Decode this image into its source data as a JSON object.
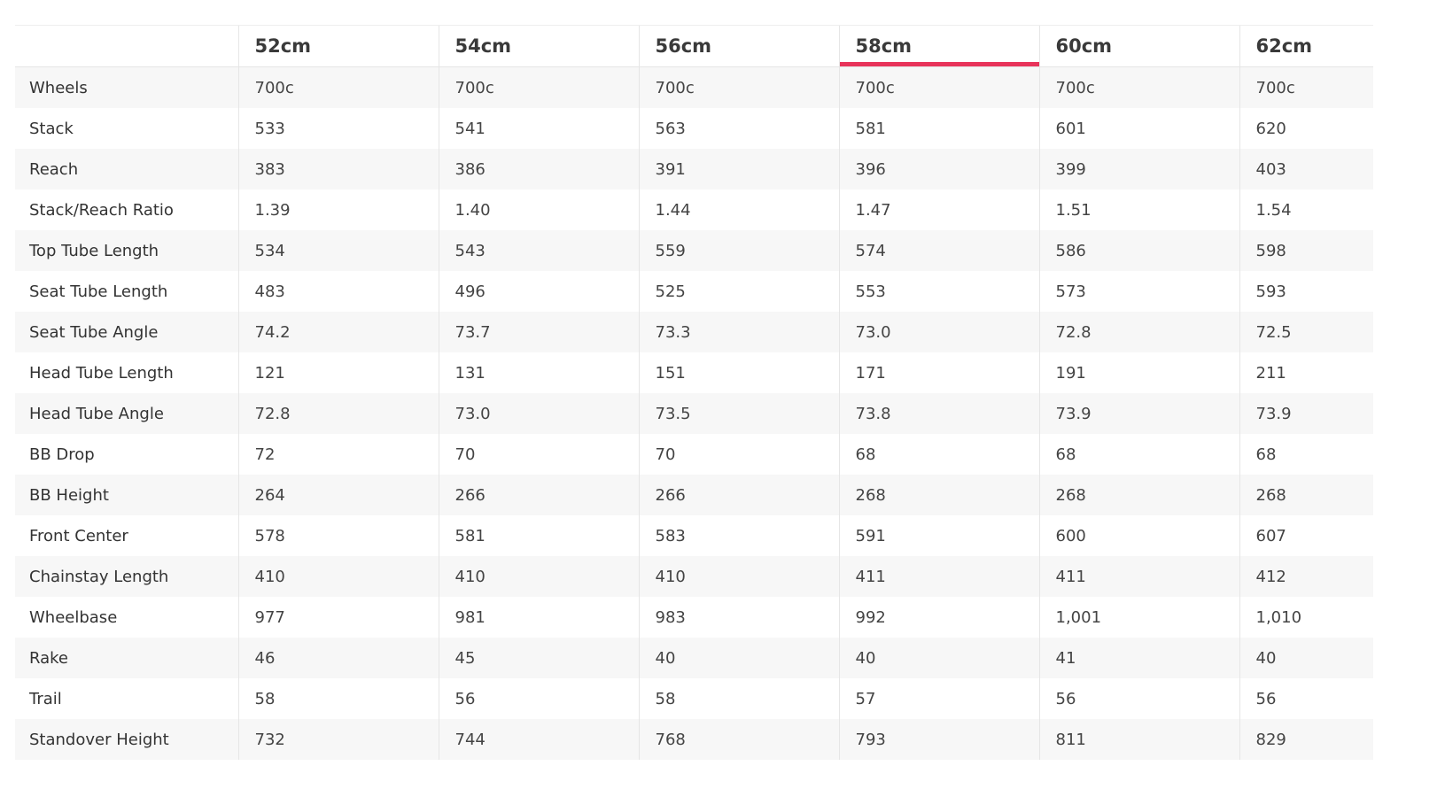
{
  "table": {
    "columns": [
      "52cm",
      "54cm",
      "56cm",
      "58cm",
      "60cm",
      "62cm"
    ],
    "rows": [
      [
        "Wheels",
        "700c",
        "700c",
        "700c",
        "700c",
        "700c",
        "700c"
      ],
      [
        "Stack",
        "533",
        "541",
        "563",
        "581",
        "601",
        "620"
      ],
      [
        "Reach",
        "383",
        "386",
        "391",
        "396",
        "399",
        "403"
      ],
      [
        "Stack/Reach Ratio",
        "1.39",
        "1.40",
        "1.44",
        "1.47",
        "1.51",
        "1.54"
      ],
      [
        "Top Tube Length",
        "534",
        "543",
        "559",
        "574",
        "586",
        "598"
      ],
      [
        "Seat Tube Length",
        "483",
        "496",
        "525",
        "553",
        "573",
        "593"
      ],
      [
        "Seat Tube Angle",
        "74.2",
        "73.7",
        "73.3",
        "73.0",
        "72.8",
        "72.5"
      ],
      [
        "Head Tube Length",
        "121",
        "131",
        "151",
        "171",
        "191",
        "211"
      ],
      [
        "Head Tube Angle",
        "72.8",
        "73.0",
        "73.5",
        "73.8",
        "73.9",
        "73.9"
      ],
      [
        "BB Drop",
        "72",
        "70",
        "70",
        "68",
        "68",
        "68"
      ],
      [
        "BB Height",
        "264",
        "266",
        "266",
        "268",
        "268",
        "268"
      ],
      [
        "Front Center",
        "578",
        "581",
        "583",
        "591",
        "600",
        "607"
      ],
      [
        "Chainstay Length",
        "410",
        "410",
        "410",
        "411",
        "411",
        "412"
      ],
      [
        "Wheelbase",
        "977",
        "981",
        "983",
        "992",
        "1,001",
        "1,010"
      ],
      [
        "Rake",
        "46",
        "45",
        "40",
        "40",
        "41",
        "40"
      ],
      [
        "Trail",
        "58",
        "56",
        "58",
        "57",
        "56",
        "56"
      ],
      [
        "Standover Height",
        "732",
        "744",
        "768",
        "793",
        "811",
        "829"
      ]
    ]
  }
}
